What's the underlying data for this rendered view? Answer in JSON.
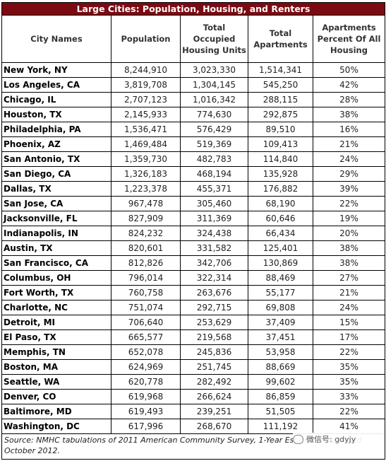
{
  "table": {
    "title": "Large Cities: Population, Housing, and Renters",
    "headers": [
      "City Names",
      "Population",
      "Total Occupied Housing Units",
      "Total Apartments",
      "Apartments Percent Of All Housing"
    ],
    "rows": [
      [
        "New York, NY",
        "8,244,910",
        "3,023,330",
        "1,514,341",
        "50%"
      ],
      [
        "Los Angeles, CA",
        "3,819,708",
        "1,304,145",
        "545,250",
        "42%"
      ],
      [
        "Chicago, IL",
        "2,707,123",
        "1,016,342",
        "288,115",
        "28%"
      ],
      [
        "Houston, TX",
        "2,145,933",
        "774,630",
        "292,875",
        "38%"
      ],
      [
        "Philadelphia, PA",
        "1,536,471",
        "576,429",
        "89,510",
        "16%"
      ],
      [
        "Phoenix, AZ",
        "1,469,484",
        "519,369",
        "109,413",
        "21%"
      ],
      [
        "San Antonio, TX",
        "1,359,730",
        "482,783",
        "114,840",
        "24%"
      ],
      [
        "San Diego, CA",
        "1,326,183",
        "468,194",
        "135,928",
        "29%"
      ],
      [
        "Dallas, TX",
        "1,223,378",
        "455,371",
        "176,882",
        "39%"
      ],
      [
        "San Jose, CA",
        "967,478",
        "305,460",
        "68,190",
        "22%"
      ],
      [
        "Jacksonville, FL",
        "827,909",
        "311,369",
        "60,646",
        "19%"
      ],
      [
        "Indianapolis, IN",
        "824,232",
        "324,438",
        "66,434",
        "20%"
      ],
      [
        "Austin, TX",
        "820,601",
        "331,582",
        "125,401",
        "38%"
      ],
      [
        "San Francisco, CA",
        "812,826",
        "342,706",
        "130,869",
        "38%"
      ],
      [
        "Columbus, OH",
        "796,014",
        "322,314",
        "88,469",
        "27%"
      ],
      [
        "Fort Worth, TX",
        "760,758",
        "263,676",
        "55,177",
        "21%"
      ],
      [
        "Charlotte, NC",
        "751,074",
        "292,715",
        "69,808",
        "24%"
      ],
      [
        "Detroit, MI",
        "706,640",
        "253,629",
        "37,409",
        "15%"
      ],
      [
        "El Paso, TX",
        "665,577",
        "219,568",
        "37,451",
        "17%"
      ],
      [
        "Memphis, TN",
        "652,078",
        "245,836",
        "53,958",
        "22%"
      ],
      [
        "Boston, MA",
        "624,969",
        "251,745",
        "88,669",
        "35%"
      ],
      [
        "Seattle, WA",
        "620,778",
        "282,492",
        "99,602",
        "35%"
      ],
      [
        "Denver, CO",
        "619,968",
        "266,624",
        "86,859",
        "33%"
      ],
      [
        "Baltimore, MD",
        "619,493",
        "239,251",
        "51,505",
        "22%"
      ],
      [
        "Washington, DC",
        "617,996",
        "268,670",
        "111,192",
        "41%"
      ]
    ],
    "source": "Source: NMHC tabulations of 2011 American Community Survey, 1-Year Estimates, released October 2012."
  },
  "watermark": {
    "icon": "wechat-icon",
    "text": "微信号: gdyjy"
  }
}
